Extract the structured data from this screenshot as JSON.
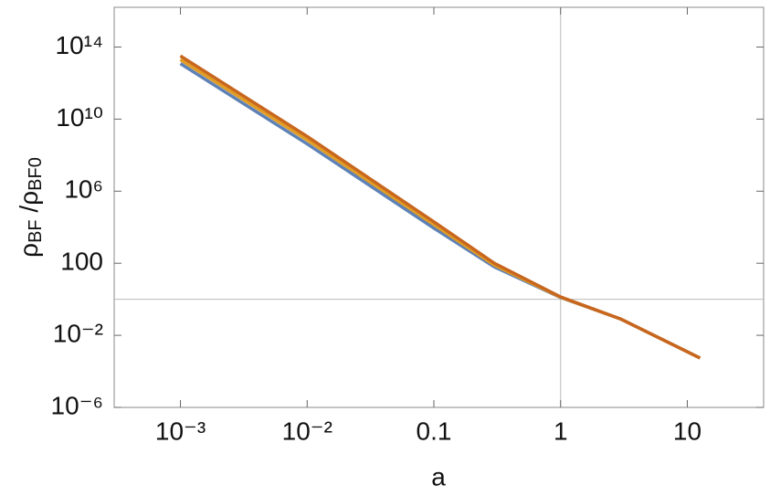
{
  "chart_data": {
    "type": "line",
    "xlabel": "a",
    "ylabel": [
      "ρ",
      "BF",
      " /ρ",
      "BF0"
    ],
    "xscale": "log",
    "yscale": "log",
    "x": [
      0.001,
      0.01,
      0.1,
      0.3,
      1,
      3,
      12.6
    ],
    "series": [
      {
        "color": "#5e81b5",
        "values": [
          12000000000000.0,
          420000000.0,
          8900,
          63,
          1.26,
          0.079,
          0.00055
        ]
      },
      {
        "color": "#e19c24",
        "values": [
          20000000000000.0,
          700000000.0,
          14000,
          79,
          1.3,
          0.079,
          0.00055
        ]
      },
      {
        "color": "#c8661e",
        "values": [
          32000000000000.0,
          1100000000.0,
          20000,
          100,
          1.35,
          0.079,
          0.00055
        ]
      }
    ],
    "xlim": [
      0.0003,
      40
    ],
    "ylim": [
      1e-06,
      1.6e+16
    ],
    "xticks": [
      {
        "value": 0.001,
        "label": "10⁻³"
      },
      {
        "value": 0.01,
        "label": "10⁻²"
      },
      0.1,
      1,
      10
    ],
    "yticks": [
      {
        "value": 1e-06,
        "label": "10⁻⁶"
      },
      {
        "value": 0.01,
        "label": "10⁻²"
      },
      100,
      {
        "value": 1000000.0,
        "label": "10⁶"
      },
      {
        "value": 10000000000.0,
        "label": "10¹⁰"
      },
      {
        "value": 100000000000000.0,
        "label": "10¹⁴"
      }
    ]
  }
}
